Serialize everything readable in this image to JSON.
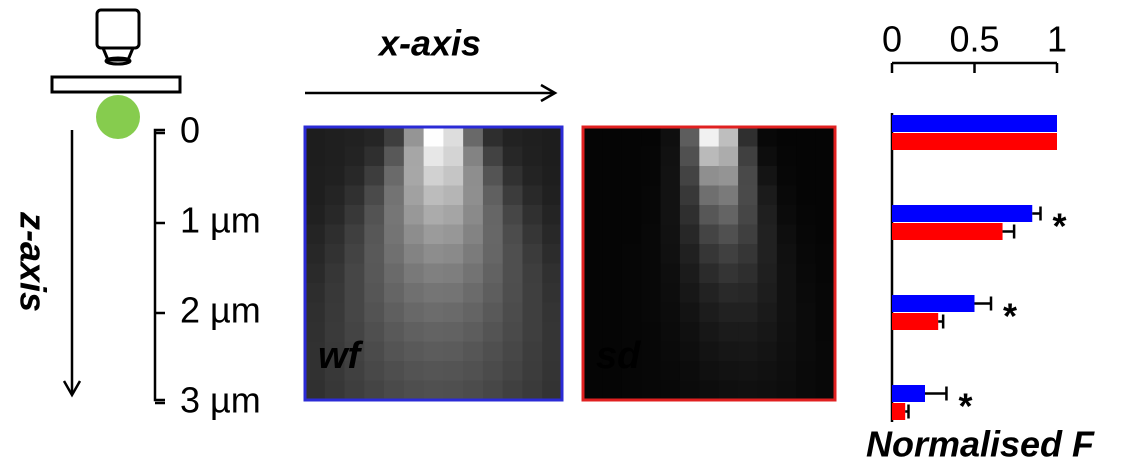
{
  "diagram": {
    "x_axis_label": "x-axis",
    "z_axis_label": "z-axis"
  },
  "chart_data": {
    "type": "bar",
    "orientation": "horizontal",
    "categories": [
      "0",
      "1 µm",
      "2 µm",
      "3 µm"
    ],
    "series": [
      {
        "name": "wf",
        "color": "#0000ff",
        "values": [
          1,
          0.85,
          0.5,
          0.2
        ],
        "errors": [
          0,
          0.05,
          0.1,
          0.13
        ]
      },
      {
        "name": "sd",
        "color": "#ff0000",
        "values": [
          1,
          0.67,
          0.28,
          0.08
        ],
        "errors": [
          0,
          0.07,
          0.03,
          0.02
        ]
      }
    ],
    "annotations": [
      null,
      "*",
      "*",
      "*"
    ],
    "xlabel": "Normalised  F",
    "xlim": [
      0,
      1
    ],
    "xticks": [
      0,
      0.5,
      1
    ]
  }
}
